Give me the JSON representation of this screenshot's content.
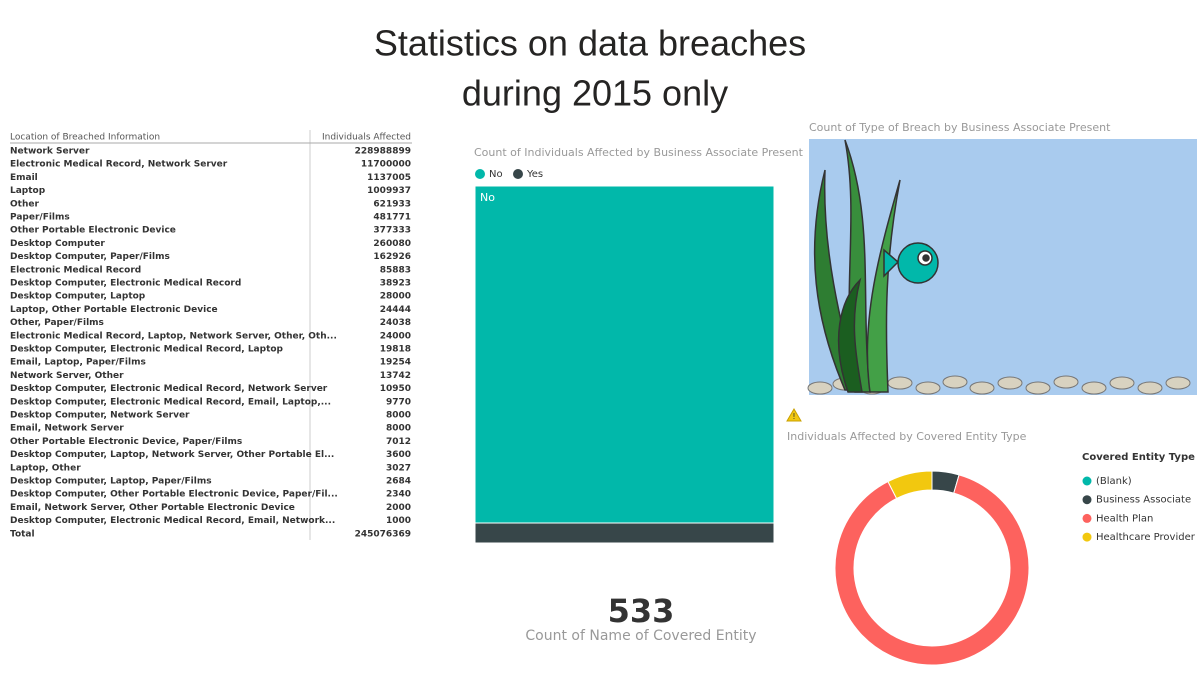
{
  "title": [
    "Statistics on data breaches",
    "during 2015 only"
  ],
  "table": {
    "headers": [
      "Location of Breached Information",
      "Individuals Affected"
    ],
    "rows": [
      [
        "Network Server",
        "228988899"
      ],
      [
        "Electronic Medical Record, Network Server",
        "11700000"
      ],
      [
        "Email",
        "1137005"
      ],
      [
        "Laptop",
        "1009937"
      ],
      [
        "Other",
        "621933"
      ],
      [
        "Paper/Films",
        "481771"
      ],
      [
        "Other Portable Electronic Device",
        "377333"
      ],
      [
        "Desktop Computer",
        "260080"
      ],
      [
        "Desktop Computer, Paper/Films",
        "162926"
      ],
      [
        "Electronic Medical Record",
        "85883"
      ],
      [
        "Desktop Computer, Electronic Medical Record",
        "38923"
      ],
      [
        "Desktop Computer, Laptop",
        "28000"
      ],
      [
        "Laptop, Other Portable Electronic Device",
        "24444"
      ],
      [
        "Other, Paper/Films",
        "24038"
      ],
      [
        "Electronic Medical Record, Laptop, Network Server, Other, Oth...",
        "24000"
      ],
      [
        "Desktop Computer, Electronic Medical Record, Laptop",
        "19818"
      ],
      [
        "Email, Laptop, Paper/Films",
        "19254"
      ],
      [
        "Network Server, Other",
        "13742"
      ],
      [
        "Desktop Computer, Electronic Medical Record, Network Server",
        "10950"
      ],
      [
        "Desktop Computer, Electronic Medical Record, Email, Laptop,...",
        "9770"
      ],
      [
        "Desktop Computer, Network Server",
        "8000"
      ],
      [
        "Email, Network Server",
        "8000"
      ],
      [
        "Other Portable Electronic Device, Paper/Films",
        "7012"
      ],
      [
        "Desktop Computer, Laptop, Network Server, Other Portable El...",
        "3600"
      ],
      [
        "Laptop, Other",
        "3027"
      ],
      [
        "Desktop Computer, Laptop, Paper/Films",
        "2684"
      ],
      [
        "Desktop Computer, Other Portable Electronic Device, Paper/Fil...",
        "2340"
      ],
      [
        "Email, Network Server, Other Portable Electronic Device",
        "2000"
      ],
      [
        "Desktop Computer, Electronic Medical Record, Email, Network...",
        "1000"
      ]
    ],
    "total": [
      "Total",
      "245076369"
    ]
  },
  "chart_data": [
    {
      "type": "bar",
      "title": "Count of Individuals Affected by Business Associate Present",
      "stacked": true,
      "series": [
        {
          "name": "No",
          "color": "#01B8AA",
          "values": [
            94.4
          ]
        },
        {
          "name": "Yes",
          "color": "#374649",
          "values": [
            5.6
          ]
        }
      ]
    },
    {
      "type": "pie",
      "title": "Individuals Affected by Covered Entity Type",
      "legend_title": "Covered Entity Type",
      "categories": [
        "(Blank)",
        "Business Associate",
        "Health Plan",
        "Healthcare Provider"
      ],
      "values": [
        0,
        4.5,
        88,
        7.5
      ],
      "colors": [
        "#01B8AA",
        "#374649",
        "#FD625E",
        "#F2C80F"
      ]
    }
  ],
  "visual": {
    "title": "Count of Type of Breach by Business Associate Present"
  },
  "card": {
    "value": "533",
    "label": "Count of Name of Covered Entity"
  }
}
